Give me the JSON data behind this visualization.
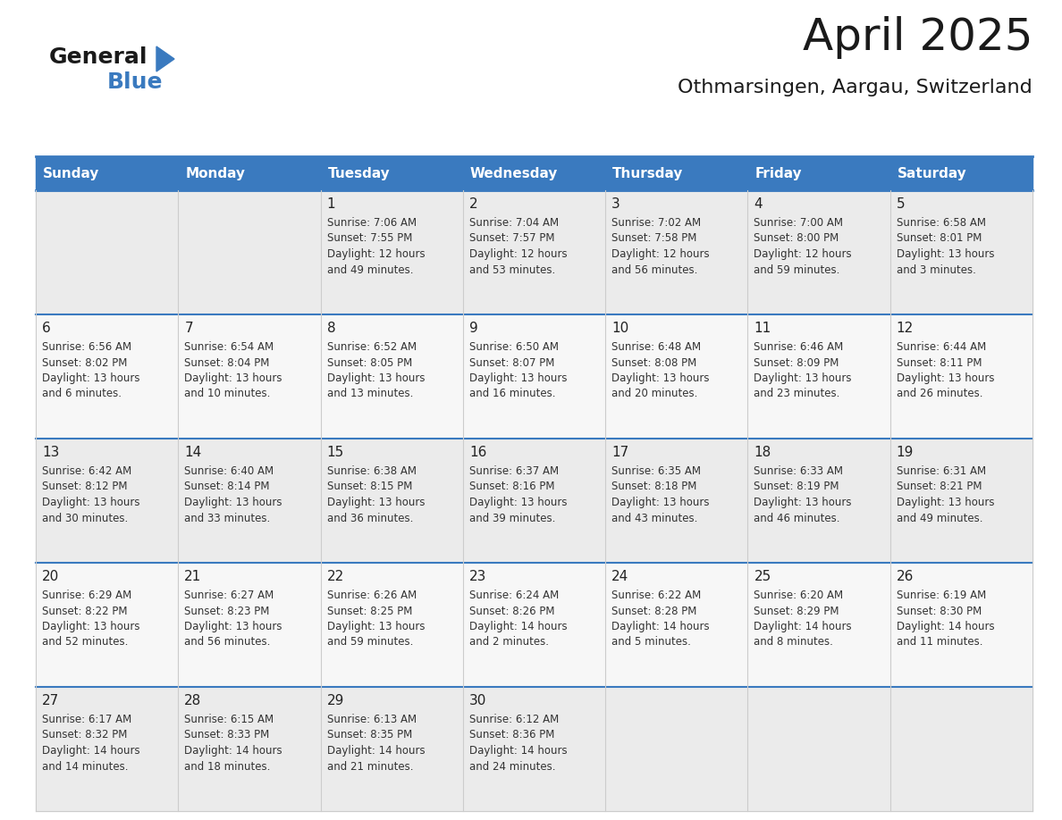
{
  "title": "April 2025",
  "subtitle": "Othmarsingen, Aargau, Switzerland",
  "header_bg": "#3a7abf",
  "header_text": "#ffffff",
  "cell_bg_odd": "#ebebeb",
  "cell_bg_even": "#f7f7f7",
  "grid_line_color": "#3a7abf",
  "inner_line_color": "#cccccc",
  "day_names": [
    "Sunday",
    "Monday",
    "Tuesday",
    "Wednesday",
    "Thursday",
    "Friday",
    "Saturday"
  ],
  "weeks": [
    [
      {
        "day": "",
        "info": ""
      },
      {
        "day": "",
        "info": ""
      },
      {
        "day": "1",
        "info": "Sunrise: 7:06 AM\nSunset: 7:55 PM\nDaylight: 12 hours\nand 49 minutes."
      },
      {
        "day": "2",
        "info": "Sunrise: 7:04 AM\nSunset: 7:57 PM\nDaylight: 12 hours\nand 53 minutes."
      },
      {
        "day": "3",
        "info": "Sunrise: 7:02 AM\nSunset: 7:58 PM\nDaylight: 12 hours\nand 56 minutes."
      },
      {
        "day": "4",
        "info": "Sunrise: 7:00 AM\nSunset: 8:00 PM\nDaylight: 12 hours\nand 59 minutes."
      },
      {
        "day": "5",
        "info": "Sunrise: 6:58 AM\nSunset: 8:01 PM\nDaylight: 13 hours\nand 3 minutes."
      }
    ],
    [
      {
        "day": "6",
        "info": "Sunrise: 6:56 AM\nSunset: 8:02 PM\nDaylight: 13 hours\nand 6 minutes."
      },
      {
        "day": "7",
        "info": "Sunrise: 6:54 AM\nSunset: 8:04 PM\nDaylight: 13 hours\nand 10 minutes."
      },
      {
        "day": "8",
        "info": "Sunrise: 6:52 AM\nSunset: 8:05 PM\nDaylight: 13 hours\nand 13 minutes."
      },
      {
        "day": "9",
        "info": "Sunrise: 6:50 AM\nSunset: 8:07 PM\nDaylight: 13 hours\nand 16 minutes."
      },
      {
        "day": "10",
        "info": "Sunrise: 6:48 AM\nSunset: 8:08 PM\nDaylight: 13 hours\nand 20 minutes."
      },
      {
        "day": "11",
        "info": "Sunrise: 6:46 AM\nSunset: 8:09 PM\nDaylight: 13 hours\nand 23 minutes."
      },
      {
        "day": "12",
        "info": "Sunrise: 6:44 AM\nSunset: 8:11 PM\nDaylight: 13 hours\nand 26 minutes."
      }
    ],
    [
      {
        "day": "13",
        "info": "Sunrise: 6:42 AM\nSunset: 8:12 PM\nDaylight: 13 hours\nand 30 minutes."
      },
      {
        "day": "14",
        "info": "Sunrise: 6:40 AM\nSunset: 8:14 PM\nDaylight: 13 hours\nand 33 minutes."
      },
      {
        "day": "15",
        "info": "Sunrise: 6:38 AM\nSunset: 8:15 PM\nDaylight: 13 hours\nand 36 minutes."
      },
      {
        "day": "16",
        "info": "Sunrise: 6:37 AM\nSunset: 8:16 PM\nDaylight: 13 hours\nand 39 minutes."
      },
      {
        "day": "17",
        "info": "Sunrise: 6:35 AM\nSunset: 8:18 PM\nDaylight: 13 hours\nand 43 minutes."
      },
      {
        "day": "18",
        "info": "Sunrise: 6:33 AM\nSunset: 8:19 PM\nDaylight: 13 hours\nand 46 minutes."
      },
      {
        "day": "19",
        "info": "Sunrise: 6:31 AM\nSunset: 8:21 PM\nDaylight: 13 hours\nand 49 minutes."
      }
    ],
    [
      {
        "day": "20",
        "info": "Sunrise: 6:29 AM\nSunset: 8:22 PM\nDaylight: 13 hours\nand 52 minutes."
      },
      {
        "day": "21",
        "info": "Sunrise: 6:27 AM\nSunset: 8:23 PM\nDaylight: 13 hours\nand 56 minutes."
      },
      {
        "day": "22",
        "info": "Sunrise: 6:26 AM\nSunset: 8:25 PM\nDaylight: 13 hours\nand 59 minutes."
      },
      {
        "day": "23",
        "info": "Sunrise: 6:24 AM\nSunset: 8:26 PM\nDaylight: 14 hours\nand 2 minutes."
      },
      {
        "day": "24",
        "info": "Sunrise: 6:22 AM\nSunset: 8:28 PM\nDaylight: 14 hours\nand 5 minutes."
      },
      {
        "day": "25",
        "info": "Sunrise: 6:20 AM\nSunset: 8:29 PM\nDaylight: 14 hours\nand 8 minutes."
      },
      {
        "day": "26",
        "info": "Sunrise: 6:19 AM\nSunset: 8:30 PM\nDaylight: 14 hours\nand 11 minutes."
      }
    ],
    [
      {
        "day": "27",
        "info": "Sunrise: 6:17 AM\nSunset: 8:32 PM\nDaylight: 14 hours\nand 14 minutes."
      },
      {
        "day": "28",
        "info": "Sunrise: 6:15 AM\nSunset: 8:33 PM\nDaylight: 14 hours\nand 18 minutes."
      },
      {
        "day": "29",
        "info": "Sunrise: 6:13 AM\nSunset: 8:35 PM\nDaylight: 14 hours\nand 21 minutes."
      },
      {
        "day": "30",
        "info": "Sunrise: 6:12 AM\nSunset: 8:36 PM\nDaylight: 14 hours\nand 24 minutes."
      },
      {
        "day": "",
        "info": ""
      },
      {
        "day": "",
        "info": ""
      },
      {
        "day": "",
        "info": ""
      }
    ]
  ],
  "logo_color_general": "#1a1a1a",
  "logo_color_blue": "#3a7abf",
  "logo_triangle_color": "#3a7abf",
  "title_fontsize": 36,
  "subtitle_fontsize": 16,
  "header_fontsize": 11,
  "day_num_fontsize": 11,
  "info_fontsize": 8.5
}
